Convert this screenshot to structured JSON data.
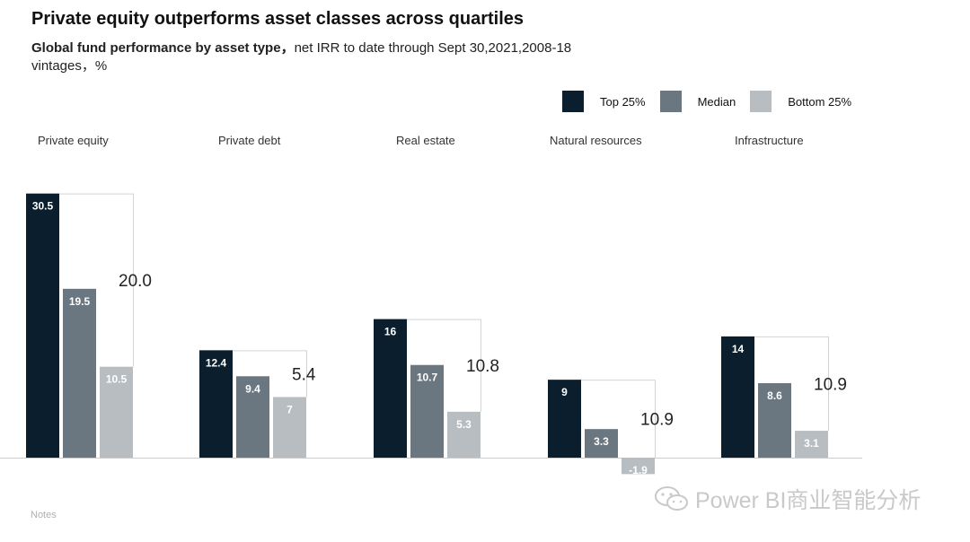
{
  "title": "Private equity outperforms asset classes across quartiles",
  "subtitle": {
    "bold": "Global fund performance by asset type，",
    "rest": "net IRR to date through Sept 30,2021,2008-18 vintages，%"
  },
  "notes": "Notes",
  "watermark": "Power BI商业智能分析",
  "colors": {
    "top": "#0b1e2d",
    "median": "#6b7780",
    "bottom": "#b8bdc2",
    "bracket": "#d4d4d4",
    "axis": "#cccccc"
  },
  "chart_data": {
    "type": "bar",
    "title": "Private equity outperforms asset classes across quartiles",
    "categories": [
      "Private equity",
      "Private debt",
      "Real estate",
      "Natural resources",
      "Infrastructure"
    ],
    "series": [
      {
        "name": "Top 25%",
        "values": [
          30.5,
          12.4,
          16,
          9,
          14
        ]
      },
      {
        "name": "Median",
        "values": [
          19.5,
          9.4,
          10.7,
          3.3,
          8.6
        ]
      },
      {
        "name": "Bottom 25%",
        "values": [
          10.5,
          7,
          5.3,
          -1.9,
          3.1
        ]
      }
    ],
    "value_labels": [
      [
        "30.5",
        "19.5",
        "10.5"
      ],
      [
        "12.4",
        "9.4",
        "7"
      ],
      [
        "16",
        "10.7",
        "5.3"
      ],
      [
        "9",
        "3.3",
        "-1.9"
      ],
      [
        "14",
        "8.6",
        "3.1"
      ]
    ],
    "spread_labels": [
      "20.0",
      "5.4",
      "10.8",
      "10.9",
      "10.9"
    ],
    "legend_position": "top-right",
    "grid": false
  }
}
